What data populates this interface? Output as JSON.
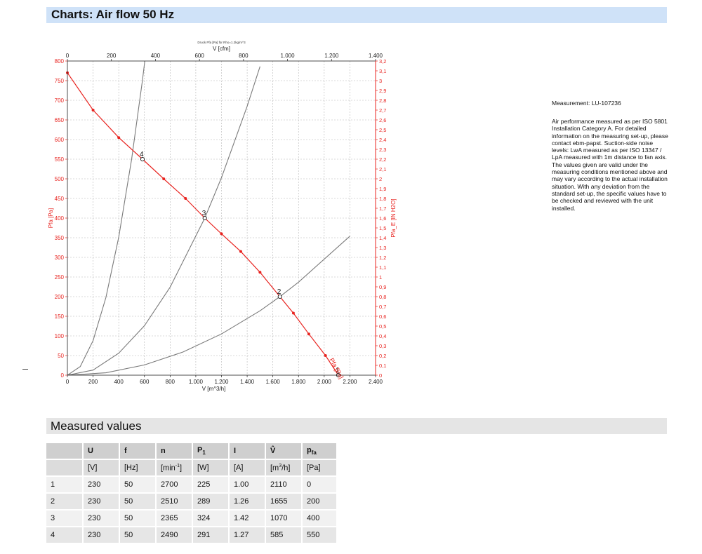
{
  "header": {
    "title": "Charts: Air flow 50 Hz"
  },
  "section": {
    "title": "Measured values"
  },
  "notes": {
    "measurement": "Measurement: LU-107236",
    "description": "Air performance measured as per ISO 5801 Installation Category A. For detailed information on the measuring set-up, please contact ebm-papst. Suction-side noise levels: LwA measured as per ISO 13347 / LpA measured with 1m distance to fan axis. The values given are valid under the measuring conditions mentioned above and may vary according to the actual installation situation. With any deviation from the standard set-up, the specific values have to be checked and reviewed with the unit installed."
  },
  "colors": {
    "accent": "#e8231f",
    "system_curve": "#7a7a7a",
    "header_bg": "#cfe2f8"
  },
  "chart_data": {
    "type": "line",
    "caption": "Druck Pfa [Pa] für Rho=1.2kg/m^3",
    "xlabel": "V [m^3/h]",
    "xlabel_top": "V [cfm]",
    "ylabel": "Pfa [Pa]",
    "ylabel_right": "Pfa_E [IN H2O]",
    "xlim": [
      0,
      2400
    ],
    "ylim": [
      0,
      800
    ],
    "xlim_top": [
      0,
      1400
    ],
    "ylim_right": [
      0,
      3.2
    ],
    "x_ticks": [
      "0",
      "200",
      "400",
      "600",
      "800",
      "1.000",
      "1.200",
      "1.400",
      "1.600",
      "1.800",
      "2.000",
      "2.200",
      "2.400"
    ],
    "y_ticks": [
      "0",
      "50",
      "100",
      "150",
      "200",
      "250",
      "300",
      "350",
      "400",
      "450",
      "500",
      "550",
      "600",
      "650",
      "700",
      "750",
      "800"
    ],
    "x_ticks_top": [
      "0",
      "200",
      "400",
      "600",
      "800",
      "1.000",
      "1.200",
      "1.400"
    ],
    "y_ticks_right": [
      "0",
      "0,1",
      "0,2",
      "0,3",
      "0,4",
      "0,5",
      "0,6",
      "0,7",
      "0,8",
      "0,9",
      "1",
      "1,1",
      "1,2",
      "1,3",
      "1,4",
      "1,5",
      "1,6",
      "1,7",
      "1,8",
      "1,9",
      "2",
      "2,1",
      "2,2",
      "2,3",
      "2,4",
      "2,5",
      "2,6",
      "2,7",
      "2,8",
      "2,9",
      "3",
      "3,1",
      "3,2"
    ],
    "grid": true,
    "series": [
      {
        "name": "Pfa [Pa]",
        "color": "#e8231f",
        "x": [
          0,
          200,
          400,
          585,
          750,
          920,
          1070,
          1200,
          1350,
          1500,
          1655,
          1760,
          1880,
          2010,
          2110
        ],
        "y": [
          770,
          675,
          605,
          550,
          500,
          450,
          400,
          360,
          315,
          262,
          200,
          158,
          105,
          50,
          0
        ]
      }
    ],
    "system_curves": [
      {
        "x": [
          0,
          100,
          200,
          300,
          400,
          500,
          585,
          650,
          700
        ],
        "y": [
          0,
          22,
          88,
          198,
          352,
          550,
          752,
          928,
          1075
        ]
      },
      {
        "x": [
          0,
          200,
          400,
          600,
          800,
          1070,
          1200,
          1400,
          1500
        ],
        "y": [
          0,
          13,
          56,
          126,
          224,
          400,
          503,
          685,
          786
        ]
      },
      {
        "x": [
          0,
          300,
          600,
          900,
          1200,
          1500,
          1655,
          1800,
          2200
        ],
        "y": [
          0,
          6,
          26,
          59,
          105,
          164,
          200,
          237,
          354
        ]
      }
    ],
    "points": [
      {
        "label": "1",
        "x": 2110,
        "y": 0
      },
      {
        "label": "2",
        "x": 1655,
        "y": 200
      },
      {
        "label": "3",
        "x": 1070,
        "y": 400
      },
      {
        "label": "4",
        "x": 585,
        "y": 550
      }
    ],
    "curve_label": "Pfa [Pa]"
  },
  "table": {
    "headers": [
      {
        "main": "",
        "sub": ""
      },
      {
        "main": "U",
        "sub": ""
      },
      {
        "main": "f",
        "sub": ""
      },
      {
        "main": "n",
        "sub": ""
      },
      {
        "main": "P",
        "sub": "1"
      },
      {
        "main": "I",
        "sub": ""
      },
      {
        "main": "V̂",
        "sub": ""
      },
      {
        "main": "p",
        "sub": "fa"
      }
    ],
    "units": [
      {
        "main": "",
        "sup": ""
      },
      {
        "main": "[V]",
        "sup": ""
      },
      {
        "main": "[Hz]",
        "sup": ""
      },
      {
        "main": "[min",
        "sup": "-1",
        "tail": "]"
      },
      {
        "main": "[W]",
        "sup": ""
      },
      {
        "main": "[A]",
        "sup": ""
      },
      {
        "main": "[m",
        "sup": "3",
        "tail": "/h]"
      },
      {
        "main": "[Pa]",
        "sup": ""
      }
    ],
    "rows": [
      [
        "1",
        "230",
        "50",
        "2700",
        "225",
        "1.00",
        "2110",
        "0"
      ],
      [
        "2",
        "230",
        "50",
        "2510",
        "289",
        "1.26",
        "1655",
        "200"
      ],
      [
        "3",
        "230",
        "50",
        "2365",
        "324",
        "1.42",
        "1070",
        "400"
      ],
      [
        "4",
        "230",
        "50",
        "2490",
        "291",
        "1.27",
        "585",
        "550"
      ]
    ]
  }
}
